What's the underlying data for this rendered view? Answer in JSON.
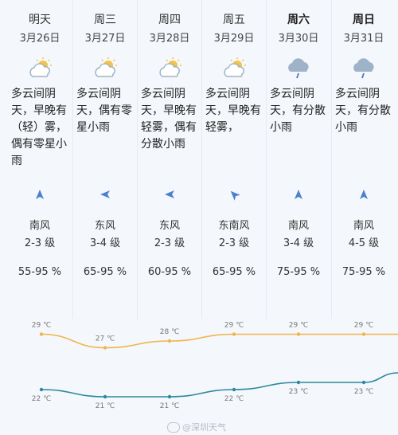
{
  "days": [
    {
      "day": "明天",
      "date": "3月26日",
      "icon": "partly-cloudy-icon",
      "desc": "多云间阴天，早晚有（轻）雾，偶有零星小雨",
      "wind_arrow": "arrow-up-icon",
      "wind_dir": "南风",
      "wind_level": "2-3 级",
      "humidity": "55-95 %"
    },
    {
      "day": "周三",
      "date": "3月27日",
      "icon": "partly-cloudy-icon",
      "desc": "多云间阴天，偶有零星小雨",
      "wind_arrow": "arrow-left-icon",
      "wind_dir": "东风",
      "wind_level": "3-4 级",
      "humidity": "65-95 %"
    },
    {
      "day": "周四",
      "date": "3月28日",
      "icon": "partly-cloudy-icon",
      "desc": "多云间阴天，早晚有轻雾，偶有分散小雨",
      "wind_arrow": "arrow-left-icon",
      "wind_dir": "东风",
      "wind_level": "2-3 级",
      "humidity": "60-95 %"
    },
    {
      "day": "周五",
      "date": "3月29日",
      "icon": "partly-cloudy-icon",
      "desc": "多云间阴天，早晚有轻雾，",
      "wind_arrow": "arrow-up-left-icon",
      "wind_dir": "东南风",
      "wind_level": "2-3 级",
      "humidity": "65-95 %"
    },
    {
      "day": "周六",
      "date": "3月30日",
      "icon": "rain-cloud-icon",
      "desc": "多云间阴天，有分散小雨",
      "wind_arrow": "arrow-up-icon",
      "wind_dir": "南风",
      "wind_level": "3-4 级",
      "humidity": "75-95 %"
    },
    {
      "day": "周日",
      "date": "3月31日",
      "icon": "rain-cloud-icon",
      "desc": "多云间阴天，有分散小雨",
      "wind_arrow": "arrow-up-icon",
      "wind_dir": "南风",
      "wind_level": "4-5 级",
      "humidity": "75-95 %"
    }
  ],
  "high_temps": [
    {
      "label": "29 ℃",
      "value": 29
    },
    {
      "label": "27 ℃",
      "value": 27
    },
    {
      "label": "28 ℃",
      "value": 28
    },
    {
      "label": "29 ℃",
      "value": 29
    },
    {
      "label": "29 ℃",
      "value": 29
    },
    {
      "label": "29 ℃",
      "value": 29
    }
  ],
  "low_temps": [
    {
      "label": "22 ℃",
      "value": 22
    },
    {
      "label": "21 ℃",
      "value": 21
    },
    {
      "label": "21 ℃",
      "value": 21
    },
    {
      "label": "22 ℃",
      "value": 22
    },
    {
      "label": "23 ℃",
      "value": 23
    },
    {
      "label": "23 ℃",
      "value": 23
    }
  ],
  "colors": {
    "high_line": "#f0b54a",
    "low_line": "#2b8a9e",
    "arrow": "#4b7fd0",
    "icon_cloud": "#9fb3c8",
    "icon_sun": "#f5c242"
  },
  "watermark": "@深圳天气"
}
